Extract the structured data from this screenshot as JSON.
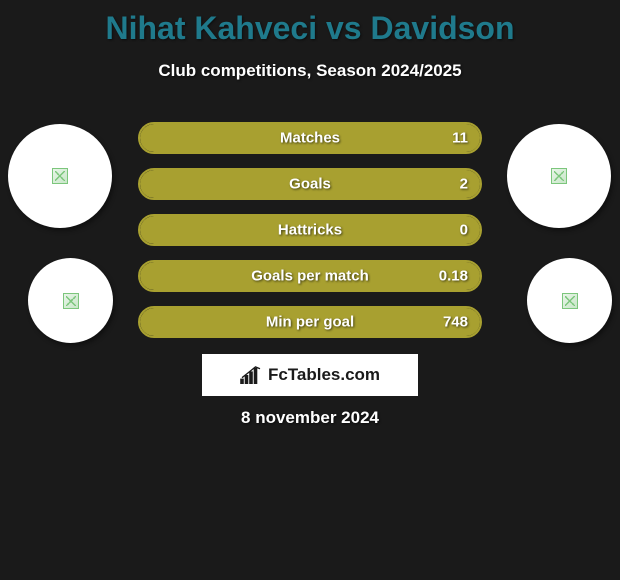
{
  "title": {
    "player1": "Nihat Kahveci",
    "vs": "vs",
    "player2": "Davidson",
    "player1_color": "#1f7a8c",
    "vs_color": "#1f7a8c",
    "player2_color": "#1f7a8c"
  },
  "subtitle": "Club competitions, Season 2024/2025",
  "background_color": "#1a1a1a",
  "bars": {
    "border_color": "#a8a030",
    "fill_color": "#a8a030",
    "track_width": 344,
    "rows": [
      {
        "label": "Matches",
        "value_right": "11",
        "left_pct": 0,
        "right_pct": 100
      },
      {
        "label": "Goals",
        "value_right": "2",
        "left_pct": 0,
        "right_pct": 100
      },
      {
        "label": "Hattricks",
        "value_right": "0",
        "left_pct": 0,
        "right_pct": 100
      },
      {
        "label": "Goals per match",
        "value_right": "0.18",
        "left_pct": 0,
        "right_pct": 100
      },
      {
        "label": "Min per goal",
        "value_right": "748",
        "left_pct": 0,
        "right_pct": 100
      }
    ]
  },
  "circles": {
    "background": "#ffffff"
  },
  "brand": {
    "text": "FcTables.com"
  },
  "date": "8 november 2024"
}
